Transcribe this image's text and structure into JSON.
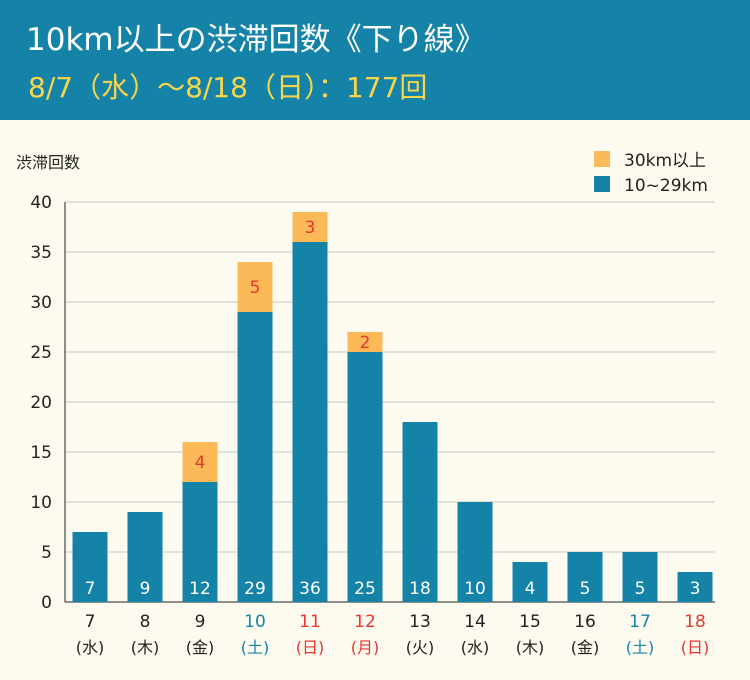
{
  "header": {
    "title": "10km以上の渋滞回数《下り線》",
    "subtitle": "8/7（水）～8/18（日）：177回"
  },
  "colors": {
    "header_bg": "#1583a8",
    "bar_main": "#1583a8",
    "bar_top": "#fbb958",
    "weekday_text": "#222222",
    "saturday_text": "#1583a8",
    "sunday_holiday_text": "#e8362e",
    "top_label_text": "#e8362e"
  },
  "chart_data": {
    "type": "bar",
    "stacked": true,
    "ylabel": "渋滞回数",
    "ylim": [
      0,
      40
    ],
    "yticks": [
      0,
      5,
      10,
      15,
      20,
      25,
      30,
      35,
      40
    ],
    "grid": true,
    "legend_position": "top-right",
    "categories": [
      "7",
      "8",
      "9",
      "10",
      "11",
      "12",
      "13",
      "14",
      "15",
      "16",
      "17",
      "18"
    ],
    "day_labels": [
      "(水)",
      "(木)",
      "(金)",
      "(土)",
      "(日)",
      "(月)",
      "(火)",
      "(水)",
      "(木)",
      "(金)",
      "(土)",
      "(日)"
    ],
    "day_types": [
      "weekday",
      "weekday",
      "weekday",
      "saturday",
      "sunday",
      "holiday",
      "weekday",
      "weekday",
      "weekday",
      "weekday",
      "saturday",
      "sunday"
    ],
    "series": [
      {
        "name": "10~29km",
        "values": [
          7,
          9,
          12,
          29,
          36,
          25,
          18,
          10,
          4,
          5,
          5,
          3
        ]
      },
      {
        "name": "30km以上",
        "values": [
          0,
          0,
          4,
          5,
          3,
          2,
          0,
          0,
          0,
          0,
          0,
          0
        ]
      }
    ],
    "legend_order": [
      "30km以上",
      "10~29km"
    ]
  }
}
